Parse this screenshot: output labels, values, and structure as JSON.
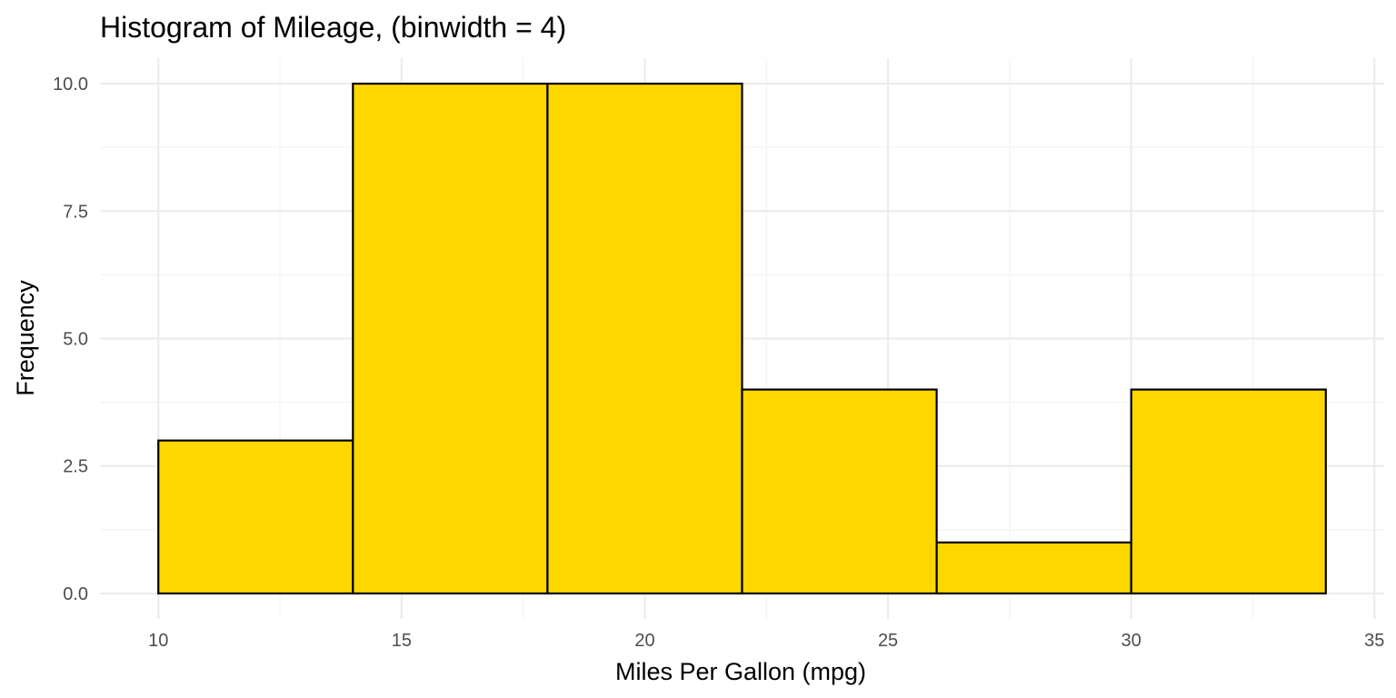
{
  "chart_data": {
    "type": "bar",
    "title": "Histogram of Mileage, (binwidth = 4)",
    "xlabel": "Miles Per Gallon (mpg)",
    "ylabel": "Frequency",
    "bins": [
      {
        "start": 10,
        "end": 14,
        "count": 3
      },
      {
        "start": 14,
        "end": 18,
        "count": 10
      },
      {
        "start": 18,
        "end": 22,
        "count": 10
      },
      {
        "start": 22,
        "end": 26,
        "count": 4
      },
      {
        "start": 26,
        "end": 30,
        "count": 1
      },
      {
        "start": 30,
        "end": 34,
        "count": 4
      }
    ],
    "xlim": [
      8.8,
      35.2
    ],
    "ylim": [
      -0.5,
      10.5
    ],
    "x_ticks": [
      10,
      15,
      20,
      25,
      30,
      35
    ],
    "x_tick_labels": [
      "10",
      "15",
      "20",
      "25",
      "30",
      "35"
    ],
    "y_ticks": [
      0,
      2.5,
      5,
      7.5,
      10
    ],
    "y_tick_labels": [
      "0.0",
      "2.5",
      "5.0",
      "7.5",
      "10.0"
    ],
    "bar_color": "#FFD700",
    "bar_outline": "#000000",
    "grid": true,
    "legend": "none"
  }
}
